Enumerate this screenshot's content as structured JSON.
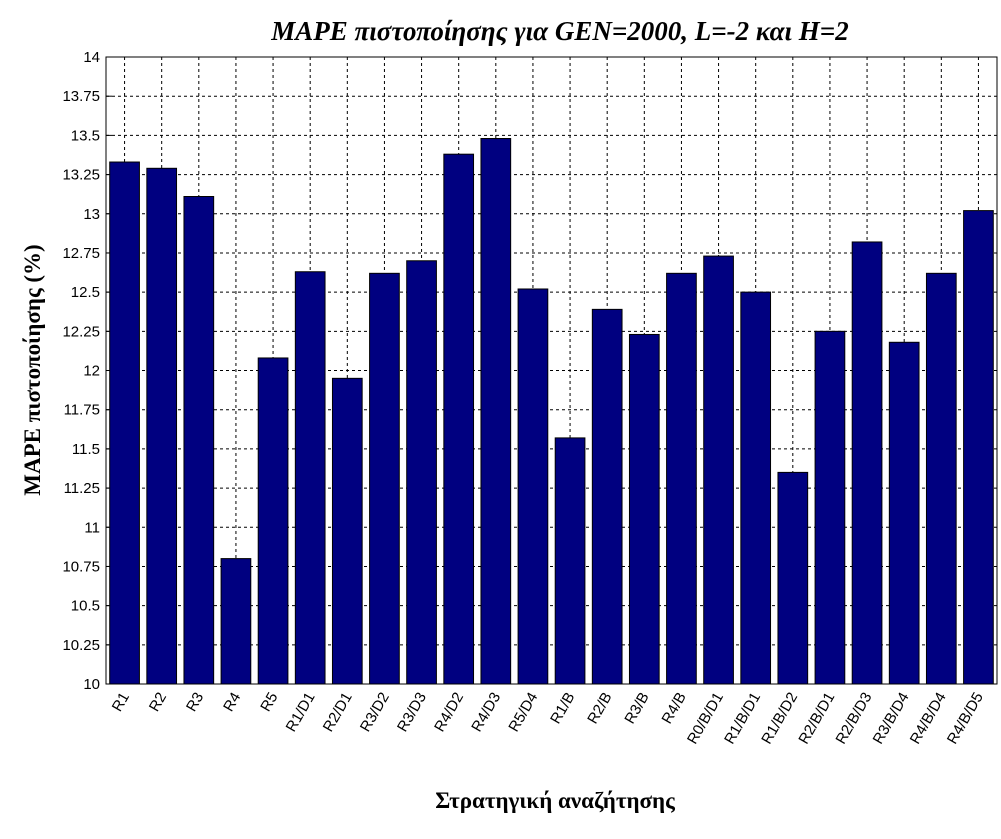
{
  "chart_data": {
    "type": "bar",
    "title": "MAPE πιστοποίησης για GEN=2000, L=-2 και H=2",
    "x_label": "Στρατηγική αναζήτησης",
    "y_label": "MAPE πιστοποίησης (%)",
    "categories": [
      "R1",
      "R2",
      "R3",
      "R4",
      "R5",
      "R1/D1",
      "R2/D1",
      "R3/D2",
      "R3/D3",
      "R4/D2",
      "R4/D3",
      "R5/D4",
      "R1/B",
      "R2/B",
      "R3/B",
      "R4/B",
      "R0/B/D1",
      "R1/B/D1",
      "R1/B/D2",
      "R2/B/D1",
      "R2/B/D3",
      "R3/B/D4",
      "R4/B/D4",
      "R4/B/D5"
    ],
    "values": [
      13.33,
      13.29,
      13.11,
      10.8,
      12.08,
      12.63,
      11.95,
      12.62,
      12.7,
      13.38,
      13.48,
      12.52,
      11.57,
      12.39,
      12.23,
      12.62,
      12.73,
      12.5,
      11.35,
      12.25,
      12.82,
      12.18,
      12.62,
      13.02
    ],
    "color": "#000080",
    "ylim": [
      10,
      14
    ],
    "yticks": [
      10,
      10.25,
      10.5,
      10.75,
      11,
      11.25,
      11.5,
      11.75,
      12,
      12.25,
      12.5,
      12.75,
      13,
      13.25,
      13.5,
      13.75,
      14
    ],
    "grid": true
  }
}
